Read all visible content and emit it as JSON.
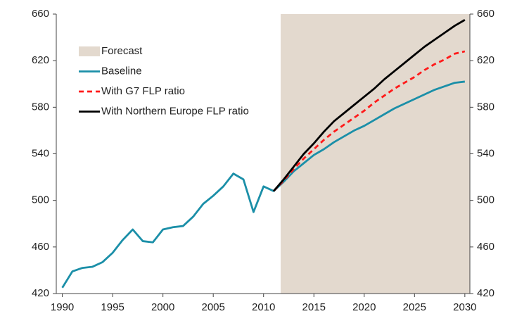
{
  "chart_data": {
    "type": "line",
    "x": [
      1990,
      1991,
      1992,
      1993,
      1994,
      1995,
      1996,
      1997,
      1998,
      1999,
      2000,
      2001,
      2002,
      2003,
      2004,
      2005,
      2006,
      2007,
      2008,
      2009,
      2010,
      2011,
      2012,
      2013,
      2014,
      2015,
      2016,
      2017,
      2018,
      2019,
      2020,
      2021,
      2022,
      2023,
      2024,
      2025,
      2026,
      2027,
      2028,
      2029,
      2030
    ],
    "shade": {
      "name": "Forecast",
      "color": "#e3d9ce",
      "x": [
        2011.7,
        2030.5
      ]
    },
    "series": [
      {
        "name": "Baseline",
        "color": "#1b8fa8",
        "dash": false,
        "values": [
          425,
          439,
          442,
          443,
          447,
          455,
          466,
          475,
          465,
          464,
          475,
          477,
          478,
          486,
          497,
          504,
          512,
          523,
          518,
          490,
          512,
          508,
          516,
          525,
          532,
          539,
          544,
          550,
          555,
          560,
          564,
          569,
          574,
          579,
          583,
          587,
          591,
          595,
          598,
          601,
          602
        ]
      },
      {
        "name": "With G7 FLP ratio",
        "color": "#ff1a1a",
        "dash": true,
        "values": [
          null,
          null,
          null,
          null,
          null,
          null,
          null,
          null,
          null,
          null,
          null,
          null,
          null,
          null,
          null,
          null,
          null,
          null,
          null,
          null,
          null,
          508,
          517,
          527,
          536,
          544,
          552,
          559,
          565,
          571,
          577,
          584,
          590,
          596,
          601,
          606,
          612,
          617,
          621,
          626,
          628
        ]
      },
      {
        "name": "With Northern Europe  FLP ratio",
        "color": "#000000",
        "dash": false,
        "values": [
          null,
          null,
          null,
          null,
          null,
          null,
          null,
          null,
          null,
          null,
          null,
          null,
          null,
          null,
          null,
          null,
          null,
          null,
          null,
          null,
          null,
          508,
          518,
          529,
          540,
          549,
          559,
          568,
          575,
          582,
          589,
          596,
          604,
          611,
          618,
          625,
          632,
          638,
          644,
          650,
          655
        ]
      }
    ],
    "xlim": [
      1989.4,
      2030.5
    ],
    "xticks": [
      1990,
      1995,
      2000,
      2005,
      2010,
      2015,
      2020,
      2025,
      2030
    ],
    "ylim": [
      420,
      660
    ],
    "yticks": [
      420,
      460,
      500,
      540,
      580,
      620,
      660
    ],
    "y2lim": [
      420,
      660
    ],
    "y2ticks": [
      420,
      460,
      500,
      540,
      580,
      620,
      660
    ]
  }
}
